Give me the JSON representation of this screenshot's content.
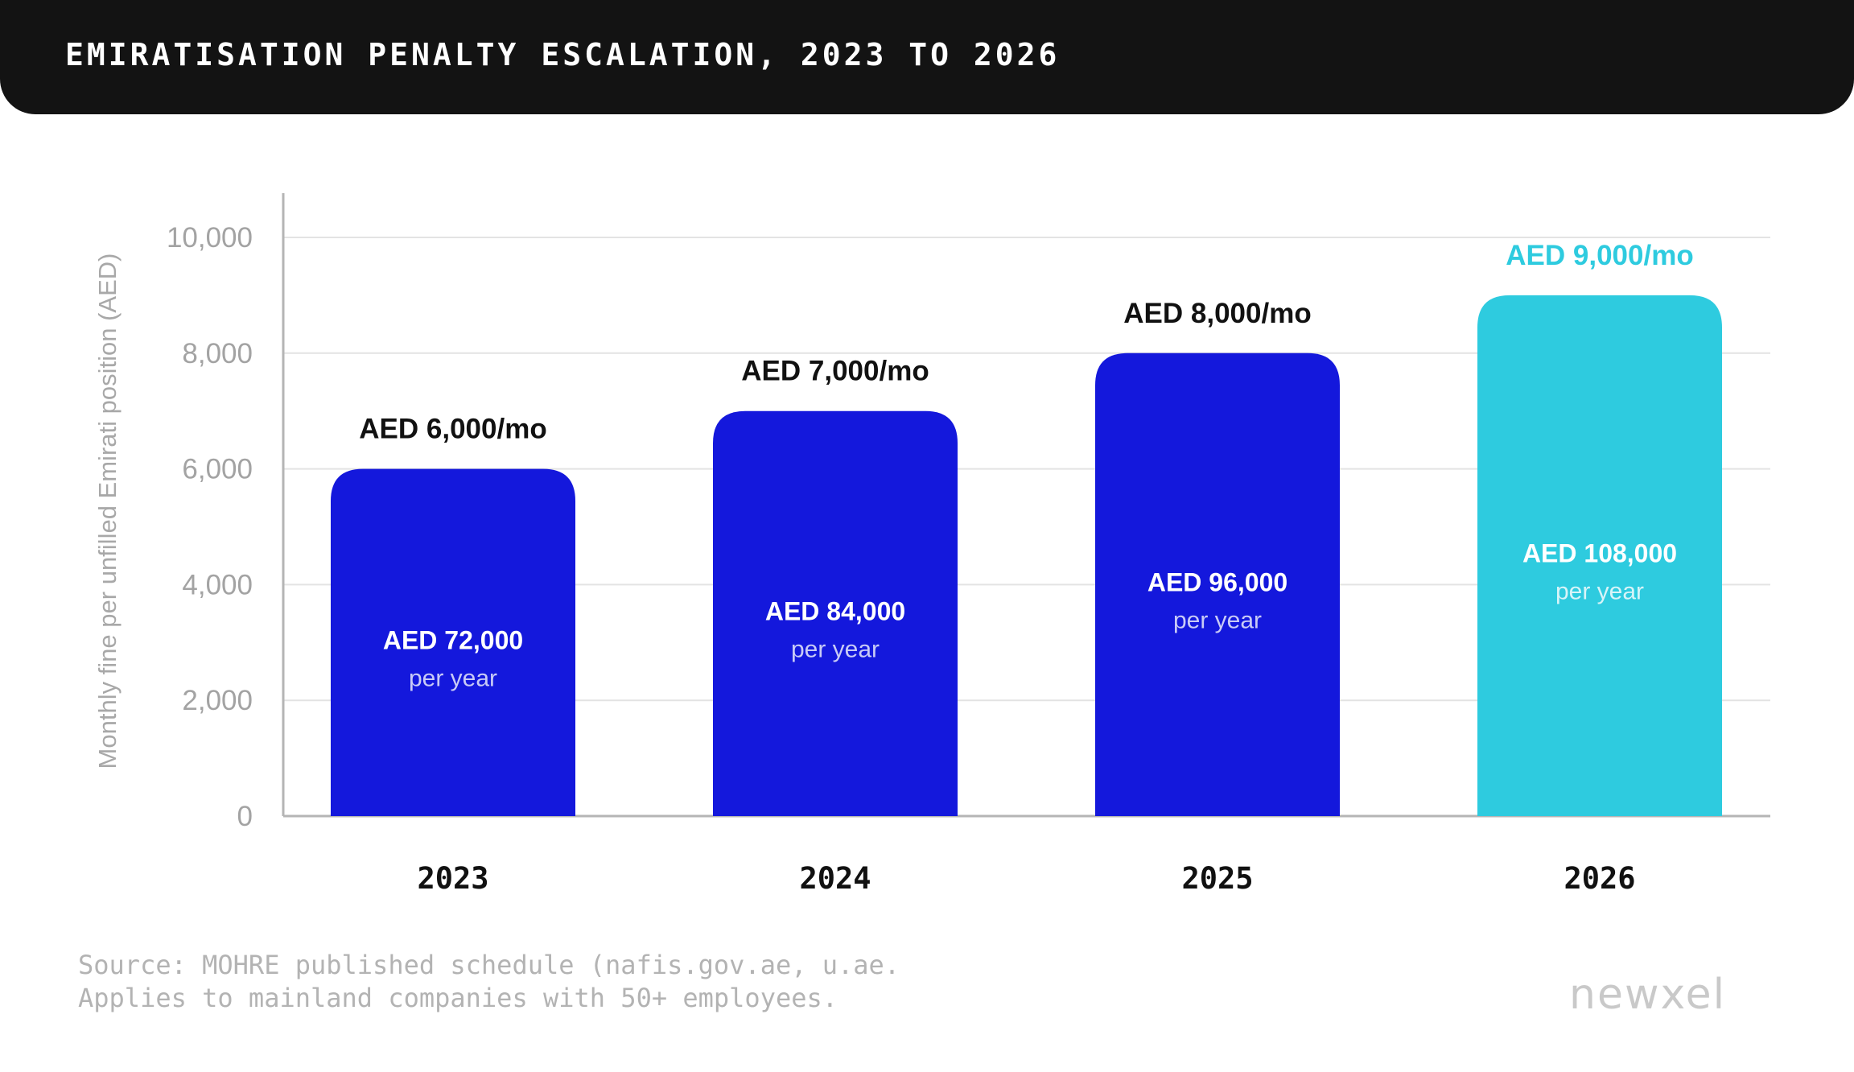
{
  "title": "EMIRATISATION PENALTY ESCALATION, 2023 TO 2026",
  "source": {
    "line1": "Source: MOHRE published schedule (nafis.gov.ae, u.ae.",
    "line2": "Applies to mainland companies with 50+ employees."
  },
  "logo": "newxel",
  "colors": {
    "bar": "#1418dc",
    "highlight": "#2ecbdf",
    "title_bg": "#131313",
    "grid": "#e3e3e3",
    "axis": "#b5b5b5"
  },
  "chart_data": {
    "type": "bar",
    "categories": [
      "2023",
      "2024",
      "2025",
      "2026"
    ],
    "values": [
      6000,
      7000,
      8000,
      9000
    ],
    "top_labels": [
      "AED 6,000/mo",
      "AED 7,000/mo",
      "AED 8,000/mo",
      "AED 9,000/mo"
    ],
    "inner_labels": [
      "AED 72,000",
      "AED 84,000",
      "AED 96,000",
      "AED 108,000"
    ],
    "inner_sublabel": "per year",
    "highlight_index": 3,
    "ylabel": "Monthly fine per unfilled Emirati position (AED)",
    "yticks": [
      "0",
      "2,000",
      "4,000",
      "6,000",
      "8,000",
      "10,000"
    ],
    "ytick_values": [
      0,
      2000,
      4000,
      6000,
      8000,
      10000
    ],
    "ylim": [
      0,
      10500
    ],
    "grid": true
  }
}
